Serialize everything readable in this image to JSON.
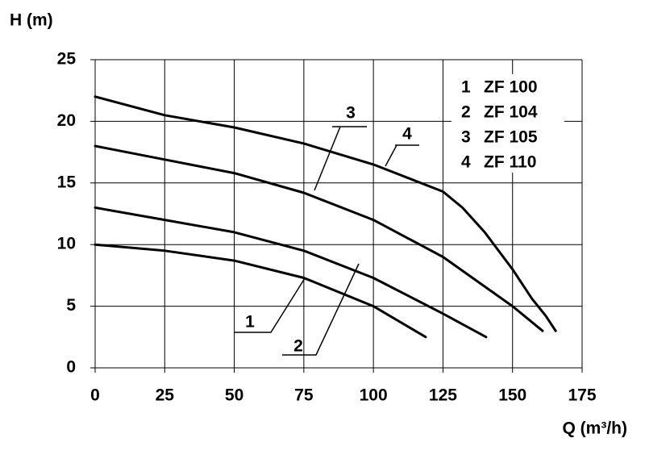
{
  "chart_data": {
    "type": "line",
    "y_label": "H (m)",
    "x_label": "Q (m³/h)",
    "xlim": [
      0,
      175
    ],
    "xticks": [
      0,
      25,
      50,
      75,
      100,
      125,
      150,
      175
    ],
    "ylim": [
      0,
      25
    ],
    "yticks": [
      0,
      5,
      10,
      15,
      20,
      25
    ],
    "grid": true,
    "legend": "upper right",
    "curve_labels": [
      "1",
      "2",
      "3",
      "4"
    ],
    "series": [
      {
        "name": "ZF 100",
        "color": "#000000",
        "x": [
          0,
          25,
          50,
          75,
          100,
          118.8
        ],
        "values": [
          10,
          9.5,
          8.7,
          7.3,
          5,
          2.5
        ]
      },
      {
        "name": "ZF 104",
        "color": "#000000",
        "x": [
          0,
          25,
          50,
          75,
          100,
          125,
          140.5
        ],
        "values": [
          13,
          12,
          11,
          9.5,
          7.3,
          4.4,
          2.5
        ]
      },
      {
        "name": "ZF 105",
        "color": "#000000",
        "x": [
          0,
          25,
          50,
          75,
          100,
          125,
          150,
          160.8
        ],
        "values": [
          18,
          16.9,
          15.8,
          14.2,
          12,
          9,
          5,
          3
        ]
      },
      {
        "name": "ZF 110",
        "color": "#000000",
        "x": [
          0,
          25,
          50,
          75,
          100,
          125,
          132,
          140,
          150,
          157,
          162,
          165.5
        ],
        "values": [
          22,
          20.5,
          19.5,
          18.2,
          16.5,
          14.3,
          13,
          11,
          8,
          5.6,
          4.2,
          3
        ]
      }
    ]
  }
}
